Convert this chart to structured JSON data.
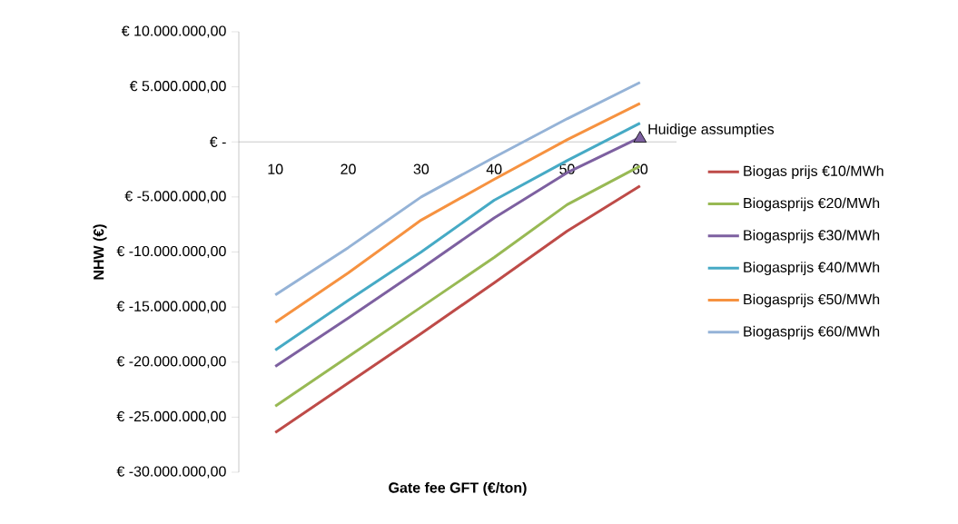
{
  "chart_data": {
    "type": "line",
    "xlabel": "Gate fee GFT (€/ton)",
    "ylabel": "NHW (€)",
    "categories": [
      "10",
      "20",
      "30",
      "40",
      "50",
      "60"
    ],
    "series": [
      {
        "name": "Biogas prijs €10/MWh",
        "color": "#be4b48",
        "values": [
          -26400000,
          -21900000,
          -17400000,
          -12800000,
          -8100000,
          -4000000
        ]
      },
      {
        "name": "Biogasprijs €20/MWh",
        "color": "#98b954",
        "values": [
          -24000000,
          -19500000,
          -15000000,
          -10500000,
          -5700000,
          -2200000
        ]
      },
      {
        "name": "Biogasprijs €30/MWh",
        "color": "#7d60a0",
        "values": [
          -20400000,
          -16000000,
          -11500000,
          -6900000,
          -2800000,
          400000
        ]
      },
      {
        "name": "Biogasprijs €40/MWh",
        "color": "#46aac5",
        "values": [
          -18900000,
          -14400000,
          -10000000,
          -5300000,
          -1700000,
          1700000
        ]
      },
      {
        "name": "Biogasprijs €50/MWh",
        "color": "#f69240",
        "values": [
          -16400000,
          -11900000,
          -7100000,
          -3400000,
          200000,
          3500000
        ]
      },
      {
        "name": "Biogasprijs €60/MWh",
        "color": "#95b3d7",
        "values": [
          -13900000,
          -9600000,
          -5000000,
          -1400000,
          2100000,
          5400000
        ]
      },
      {
        "type": "scatter",
        "marker": "triangle",
        "color": "#7d60a0",
        "x": [
          "60"
        ],
        "values": [
          300000
        ]
      }
    ],
    "ylim": [
      -30000000,
      10000000
    ],
    "yticks": [
      {
        "value": 10000000,
        "label": "€ 10.000.000,00"
      },
      {
        "value": 5000000,
        "label": "€ 5.000.000,00"
      },
      {
        "value": 0,
        "label": "€ -"
      },
      {
        "value": -5000000,
        "label": "€ -5.000.000,00"
      },
      {
        "value": -10000000,
        "label": "€ -10.000.000,00"
      },
      {
        "value": -15000000,
        "label": "€ -15.000.000,00"
      },
      {
        "value": -20000000,
        "label": "€ -20.000.000,00"
      },
      {
        "value": -25000000,
        "label": "€ -25.000.000,00"
      },
      {
        "value": -30000000,
        "label": "€ -30.000.000,00"
      }
    ],
    "annotations": [
      {
        "text": "Huidige assumpties",
        "x": "60",
        "y": 300000
      }
    ],
    "legend": "right",
    "grid": false,
    "line_style": "solid"
  }
}
